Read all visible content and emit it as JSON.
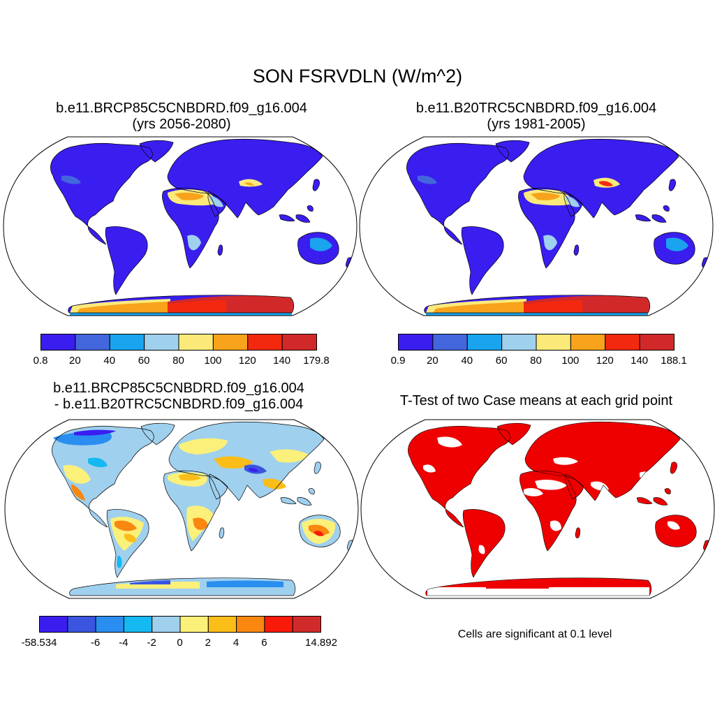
{
  "title": "SON FSRVDLN (W/m^2)",
  "panels": [
    {
      "title_line1": "b.e11.BRCP85C5CNBDRD.f09_g16.004",
      "title_line2": "(yrs 2056-2080)"
    },
    {
      "title_line1": "b.e11.B20TRC5CNBDRD.f09_g16.004",
      "title_line2": "(yrs 1981-2005)"
    },
    {
      "title_line1": "b.e11.BRCP85C5CNBDRD.f09_g16.004",
      "title_line2": "- b.e11.B20TRC5CNBDRD.f09_g16.004"
    },
    {
      "title_line1": "T-Test of two Case means at each grid point"
    }
  ],
  "colorbars": [
    {
      "labels": [
        "0.8",
        "20",
        "40",
        "60",
        "80",
        "100",
        "120",
        "140",
        "179.8"
      ],
      "colors": [
        "#3a1ef0",
        "#4466dd",
        "#1aa3ee",
        "#9fd0ee",
        "#fbea7a",
        "#f8a31b",
        "#f2290e",
        "#d1292a"
      ]
    },
    {
      "labels": [
        "0.9",
        "20",
        "40",
        "60",
        "80",
        "100",
        "120",
        "140",
        "188.1"
      ],
      "colors": [
        "#3a1ef0",
        "#4466dd",
        "#1aa3ee",
        "#9fd0ee",
        "#fbea7a",
        "#f8a31b",
        "#f2290e",
        "#d1292a"
      ]
    },
    {
      "labels": [
        "-58.534",
        "-6",
        "-4",
        "-2",
        "0",
        "2",
        "4",
        "6",
        "14.892"
      ],
      "colors": [
        "#3a1ef0",
        "#3b55e0",
        "#2a8df0",
        "#16b8f2",
        "#9fd0ee",
        "#fbf07a",
        "#fbbd18",
        "#f98710",
        "#f81b0a",
        "#d12a2a"
      ]
    }
  ],
  "significance_note": "Cells are significant at 0.1 level",
  "significance_color": "#ee0000"
}
